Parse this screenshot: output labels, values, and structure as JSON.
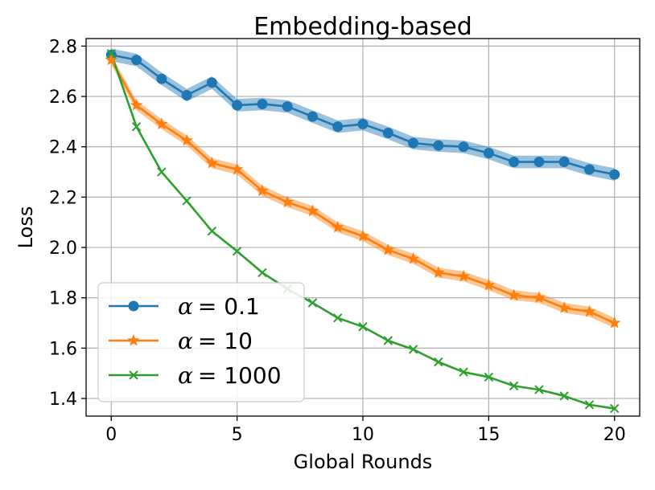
{
  "chart_data": {
    "type": "line",
    "title": "Embedding-based",
    "xlabel": "Global Rounds",
    "ylabel": "Loss",
    "xlim": [
      -1,
      21
    ],
    "ylim": [
      1.33,
      2.83
    ],
    "xticks": [
      0,
      5,
      10,
      15,
      20
    ],
    "yticks": [
      1.4,
      1.6,
      1.8,
      2.0,
      2.2,
      2.4,
      2.6,
      2.8
    ],
    "xtick_labels": [
      "0",
      "5",
      "10",
      "15",
      "20"
    ],
    "ytick_labels": [
      "1.4",
      "1.6",
      "1.8",
      "2.0",
      "2.2",
      "2.4",
      "2.6",
      "2.8"
    ],
    "grid": true,
    "legend_position": "bottom-left",
    "x": [
      0,
      1,
      2,
      3,
      4,
      5,
      6,
      7,
      8,
      9,
      10,
      11,
      12,
      13,
      14,
      15,
      16,
      17,
      18,
      19,
      20
    ],
    "series": [
      {
        "name": "α = 0.1",
        "legend_prefix": "α",
        "legend_value": "= 0.1",
        "color": "#1f77b4",
        "marker": "circle",
        "values": [
          2.765,
          2.745,
          2.67,
          2.605,
          2.655,
          2.565,
          2.57,
          2.56,
          2.52,
          2.48,
          2.49,
          2.455,
          2.415,
          2.405,
          2.4,
          2.375,
          2.34,
          2.34,
          2.34,
          2.31,
          2.29
        ],
        "band": 0.025
      },
      {
        "name": "α = 10",
        "legend_prefix": "α",
        "legend_value": "= 10",
        "color": "#ff7f0e",
        "marker": "star",
        "values": [
          2.745,
          2.565,
          2.49,
          2.425,
          2.335,
          2.31,
          2.225,
          2.18,
          2.145,
          2.08,
          2.045,
          1.99,
          1.955,
          1.9,
          1.885,
          1.85,
          1.81,
          1.8,
          1.76,
          1.745,
          1.7
        ],
        "band": 0.02
      },
      {
        "name": "α = 1000",
        "legend_prefix": "α",
        "legend_value": "= 1000",
        "color": "#2ca02c",
        "marker": "x",
        "values": [
          2.77,
          2.48,
          2.3,
          2.185,
          2.065,
          1.985,
          1.9,
          1.835,
          1.78,
          1.72,
          1.685,
          1.63,
          1.595,
          1.545,
          1.505,
          1.485,
          1.45,
          1.435,
          1.41,
          1.375,
          1.36
        ],
        "band": 0.0
      }
    ]
  }
}
